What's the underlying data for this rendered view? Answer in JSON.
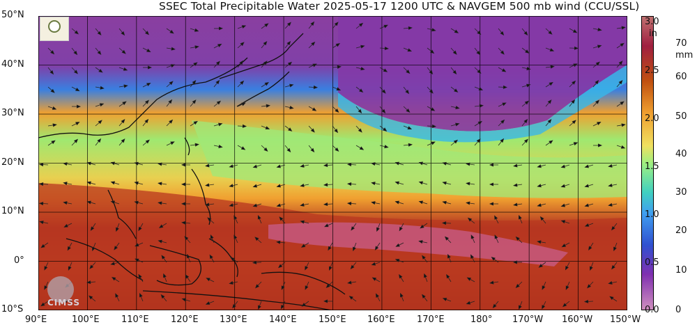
{
  "title": "SSEC Total Precipitable Water  2025-05-17 1200 UTC & NAVGEM 500 mb wind (CCU/SSL)",
  "lat_labels": [
    "50°N",
    "40°N",
    "30°N",
    "20°N",
    "10°N",
    "0°",
    "10°S"
  ],
  "lon_labels": [
    "90°E",
    "100°E",
    "110°E",
    "120°E",
    "130°E",
    "140°E",
    "150°E",
    "160°E",
    "170°E",
    "180°",
    "170°W",
    "160°W",
    "150°W"
  ],
  "colorbar": {
    "in_unit": "in",
    "mm_unit": "mm",
    "in_ticks": [
      "3.0",
      "2.5",
      "2.0",
      "1.5",
      "1.0",
      "0.5",
      "0.0"
    ],
    "mm_ticks": [
      "70",
      "60",
      "50",
      "40",
      "30",
      "20",
      "10",
      "0"
    ],
    "colors": [
      "#c07070",
      "#a02040",
      "#d07010",
      "#f0a030",
      "#f0e060",
      "#a0f080",
      "#40d0c0",
      "#40a0f0",
      "#3050d0",
      "#8030b0",
      "#b050a0",
      "#d090c0"
    ]
  },
  "logos": {
    "bottom_left": "CIMSS"
  },
  "palette": {
    "tpw_dry": "#8a3fa0",
    "tpw_low": "#3a8fe0",
    "tpw_mid": "#7fe0a0",
    "tpw_high": "#f0a030",
    "tpw_very_high": "#b03020",
    "tpw_max": "#d070c0"
  }
}
